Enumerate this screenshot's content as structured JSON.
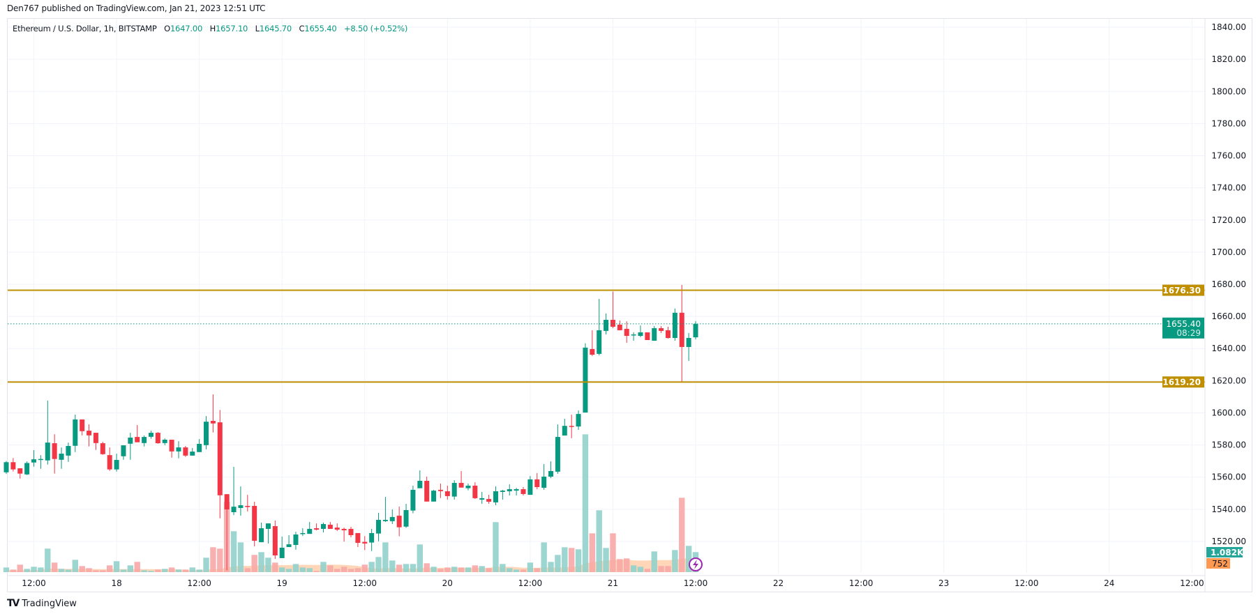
{
  "publisher": "Den767 published on TradingView.com, Jan 21, 2023 12:51 UTC",
  "legend": {
    "symbol": "Ethereum / U.S. Dollar, 1h, BITSTAMP",
    "o_label": "O",
    "o": "1647.00",
    "h_label": "H",
    "h": "1657.10",
    "l_label": "L",
    "l": "1645.70",
    "c_label": "C",
    "c": "1655.40",
    "change": "+8.50 (+0.52%)"
  },
  "price_axis": {
    "ticks": [
      "1840.00",
      "1820.00",
      "1800.00",
      "1780.00",
      "1760.00",
      "1740.00",
      "1720.00",
      "1700.00",
      "1680.00",
      "1660.00",
      "1640.00",
      "1620.00",
      "1600.00",
      "1580.00",
      "1560.00",
      "1540.00",
      "1520.00"
    ],
    "last_price_label": "1655.40",
    "countdown": "08:29",
    "volume_label": "1.082K",
    "volume_ma_label": "752"
  },
  "time_axis": {
    "ticks": [
      "12:00",
      "18",
      "12:00",
      "19",
      "12:00",
      "20",
      "12:00",
      "21",
      "12:00",
      "22",
      "12:00",
      "23",
      "12:00",
      "24",
      "12:00"
    ]
  },
  "horizontal_lines": [
    {
      "price": 1676.3,
      "label": "1676.30",
      "color": "#bf8f00"
    },
    {
      "price": 1619.2,
      "label": "1619.20",
      "color": "#bf8f00"
    }
  ],
  "colors": {
    "up": "#089981",
    "down": "#f23645",
    "up_volume": "#92d2cc",
    "down_volume": "#f7a9a7",
    "volume_ma": "#ff9e5e",
    "last_price": "#089981",
    "grid": "#f0f3fa"
  },
  "footer": {
    "brand": "TradingView",
    "logo_text": "TV"
  },
  "chart_data": {
    "type": "candlestick",
    "title": "Ethereum / U.S. Dollar, 1h, BITSTAMP",
    "interval": "1h",
    "x_range": [
      "Jan 17 08:00",
      "Jan 21 12:00"
    ],
    "ylim": [
      1501,
      1845
    ],
    "grid": true,
    "ohlc": [
      [
        1563,
        1570,
        1562,
        1569.3
      ],
      [
        1569.3,
        1571.9,
        1563.5,
        1564.8
      ],
      [
        1565.5,
        1565.5,
        1559.1,
        1562.2
      ],
      [
        1561.7,
        1569.8,
        1561.3,
        1568.8
      ],
      [
        1569.1,
        1576.8,
        1566.5,
        1571.1
      ],
      [
        1570.7,
        1573.7,
        1565.2,
        1571.3
      ],
      [
        1570.4,
        1607.6,
        1567.8,
        1581.5
      ],
      [
        1581.1,
        1586.7,
        1562.2,
        1571.3
      ],
      [
        1570.8,
        1578.5,
        1565.2,
        1574.6
      ],
      [
        1573.4,
        1581.5,
        1569.5,
        1579.4
      ],
      [
        1579.5,
        1598.9,
        1575.6,
        1595.9
      ],
      [
        1595.9,
        1595.9,
        1586.0,
        1588.6
      ],
      [
        1588.9,
        1592.8,
        1579.1,
        1586.0
      ],
      [
        1587.6,
        1587.6,
        1576.9,
        1581.2
      ],
      [
        1581.1,
        1582.0,
        1573.9,
        1574.3
      ],
      [
        1573.7,
        1578.5,
        1563.9,
        1564.8
      ],
      [
        1564.8,
        1574.6,
        1563.5,
        1570.7
      ],
      [
        1573.0,
        1579.8,
        1570.8,
        1579.8
      ],
      [
        1580.8,
        1587.6,
        1570.8,
        1584.6
      ],
      [
        1585.0,
        1592.4,
        1581.7,
        1581.7
      ],
      [
        1581.2,
        1585.9,
        1579.1,
        1585.0
      ],
      [
        1585.1,
        1588.9,
        1583.9,
        1587.6
      ],
      [
        1587.6,
        1588.0,
        1580.8,
        1581.1
      ],
      [
        1581.2,
        1584.1,
        1579.9,
        1583.3
      ],
      [
        1583.3,
        1583.3,
        1572.1,
        1576.0
      ],
      [
        1576.0,
        1582.4,
        1571.7,
        1578.5
      ],
      [
        1578.5,
        1579.4,
        1572.6,
        1573.4
      ],
      [
        1573.4,
        1578.1,
        1573.4,
        1575.9
      ],
      [
        1575.6,
        1583.7,
        1575.6,
        1580.7
      ],
      [
        1579.9,
        1598.0,
        1577.3,
        1594.5
      ],
      [
        1595.0,
        1611.5,
        1587.8,
        1593.4
      ],
      [
        1594.1,
        1601.8,
        1534.4,
        1548.7
      ],
      [
        1549.4,
        1549.4,
        1502,
        1539.9
      ],
      [
        1538.2,
        1566.4,
        1536.4,
        1541.6
      ],
      [
        1540.8,
        1554.2,
        1536.0,
        1542.5
      ],
      [
        1542.1,
        1549.0,
        1538.6,
        1541.4
      ],
      [
        1542.1,
        1544.7,
        1516.9,
        1520.4
      ],
      [
        1519.5,
        1531.7,
        1519.5,
        1528.2
      ],
      [
        1527.8,
        1531.2,
        1518.7,
        1531.2
      ],
      [
        1529.5,
        1533.0,
        1509.1,
        1511.3
      ],
      [
        1509.6,
        1523.0,
        1509.6,
        1516.1
      ],
      [
        1516.5,
        1523.9,
        1516.5,
        1518.2
      ],
      [
        1517.8,
        1526.0,
        1514.8,
        1524.3
      ],
      [
        1524.7,
        1528.2,
        1523.4,
        1525.2
      ],
      [
        1524.7,
        1532.1,
        1524.7,
        1527.8
      ],
      [
        1528.2,
        1531.2,
        1526.9,
        1527.3
      ],
      [
        1527.8,
        1531.7,
        1525.6,
        1530.8
      ],
      [
        1530.4,
        1532.1,
        1527.8,
        1527.8
      ],
      [
        1528.6,
        1531.2,
        1526.5,
        1527.3
      ],
      [
        1527.8,
        1528.6,
        1519.9,
        1526.9
      ],
      [
        1527.8,
        1529.1,
        1522.6,
        1523.9
      ],
      [
        1525.2,
        1525.2,
        1516.5,
        1519.1
      ],
      [
        1519.7,
        1523.3,
        1514.6,
        1518.7
      ],
      [
        1519.3,
        1527.8,
        1514.0,
        1525.2
      ],
      [
        1524.9,
        1537.8,
        1520.1,
        1533.4
      ],
      [
        1532.6,
        1547.7,
        1532.1,
        1533.4
      ],
      [
        1532.6,
        1539.9,
        1530.8,
        1535.2
      ],
      [
        1536.0,
        1541.7,
        1523.2,
        1528.8
      ],
      [
        1529.2,
        1543.4,
        1528.4,
        1539.5
      ],
      [
        1539.2,
        1554.7,
        1537.5,
        1552.1
      ],
      [
        1553.1,
        1564.2,
        1553.1,
        1557.7
      ],
      [
        1557.7,
        1560.3,
        1544.8,
        1544.8
      ],
      [
        1544.8,
        1552.1,
        1544.8,
        1551.6
      ],
      [
        1552.1,
        1556.0,
        1547.0,
        1551.3
      ],
      [
        1551.2,
        1554.7,
        1546.0,
        1548.2
      ],
      [
        1547.9,
        1558.1,
        1546.0,
        1556.4
      ],
      [
        1556.4,
        1563.8,
        1553.5,
        1553.5
      ],
      [
        1553.1,
        1556.0,
        1551.8,
        1554.7
      ],
      [
        1554.7,
        1556.8,
        1546.4,
        1546.9
      ],
      [
        1546.0,
        1550.8,
        1543.4,
        1546.9
      ],
      [
        1546.4,
        1549.0,
        1543.4,
        1544.7
      ],
      [
        1544.3,
        1554.2,
        1542.5,
        1551.2
      ],
      [
        1550.8,
        1552.1,
        1546.0,
        1551.6
      ],
      [
        1551.2,
        1555.5,
        1548.6,
        1552.5
      ],
      [
        1551.6,
        1553.4,
        1548.6,
        1552.5
      ],
      [
        1552.5,
        1553.8,
        1548.6,
        1549.5
      ],
      [
        1549.0,
        1560.7,
        1549.0,
        1558.6
      ],
      [
        1558.6,
        1562.5,
        1552.5,
        1553.8
      ],
      [
        1553.4,
        1568.1,
        1552.1,
        1560.3
      ],
      [
        1560.3,
        1569.8,
        1559.4,
        1563.8
      ],
      [
        1563.4,
        1592.8,
        1562.1,
        1585.0
      ],
      [
        1585.9,
        1596.3,
        1585.9,
        1591.9
      ],
      [
        1591.9,
        1598.9,
        1584.2,
        1591.5
      ],
      [
        1591.5,
        1601.5,
        1589.4,
        1599.3
      ],
      [
        1600.2,
        1643.3,
        1600.2,
        1640.6
      ],
      [
        1639.7,
        1651.4,
        1635.4,
        1636.2
      ],
      [
        1636.7,
        1670.9,
        1635.8,
        1651.4
      ],
      [
        1651.0,
        1661.8,
        1648.8,
        1657.9
      ],
      [
        1657.9,
        1675.5,
        1652.7,
        1653.6
      ],
      [
        1654.9,
        1657.5,
        1651.4,
        1651.4
      ],
      [
        1652.3,
        1657.0,
        1643.6,
        1647.9
      ],
      [
        1648.2,
        1650.1,
        1644.9,
        1648.8
      ],
      [
        1647.9,
        1654.4,
        1647.1,
        1650.1
      ],
      [
        1650.1,
        1650.1,
        1645.3,
        1645.3
      ],
      [
        1644.9,
        1654.0,
        1644.9,
        1652.7
      ],
      [
        1652.7,
        1654.0,
        1649.7,
        1651.0
      ],
      [
        1651.4,
        1653.6,
        1646.2,
        1646.6
      ],
      [
        1646.6,
        1664.9,
        1644.9,
        1662.3
      ],
      [
        1662.3,
        1679.6,
        1619.0,
        1641.0
      ],
      [
        1641.0,
        1649.7,
        1632.3,
        1646.6
      ],
      [
        1647.0,
        1657.1,
        1645.7,
        1655.4
      ]
    ],
    "volume": [
      250,
      138,
      402,
      176,
      289,
      251,
      1270,
      515,
      176,
      138,
      666,
      327,
      214,
      100,
      100,
      365,
      591,
      138,
      365,
      553,
      100,
      63,
      138,
      176,
      251,
      138,
      138,
      251,
      138,
      779,
      1345,
      1270,
      3796,
      2212,
      1609,
      214,
      930,
      1081,
      779,
      515,
      251,
      176,
      440,
      251,
      214,
      63,
      553,
      365,
      176,
      289,
      176,
      214,
      402,
      553,
      817,
      1609,
      628,
      402,
      440,
      440,
      1496,
      478,
      289,
      176,
      251,
      289,
      251,
      251,
      365,
      327,
      214,
      2703,
      440,
      214,
      138,
      138,
      515,
      214,
      1609,
      553,
      930,
      1345,
      1307,
      1232,
      7454,
      2099,
      3344,
      1307,
      2099,
      704,
      742,
      365,
      289,
      176,
      1119,
      327,
      327,
      1194,
      4022,
      1420,
      1082
    ],
    "volume_ma_last": 752
  }
}
